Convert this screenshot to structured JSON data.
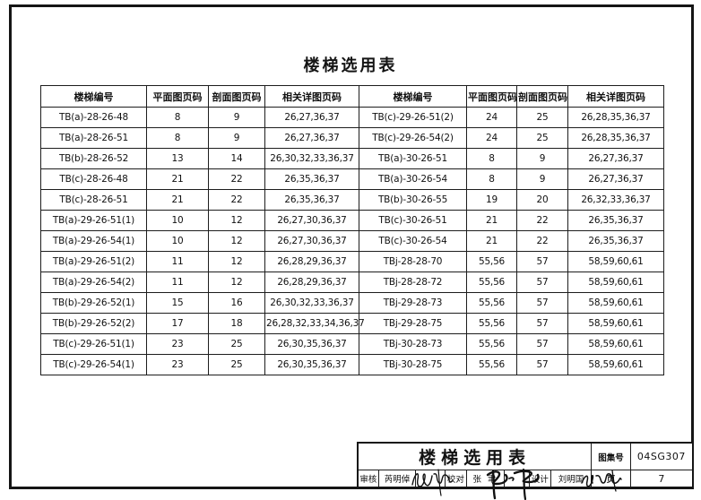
{
  "page": {
    "title": "楼梯选用表"
  },
  "table": {
    "headers": [
      "楼梯编号",
      "平面图页码",
      "剖面图页码",
      "相关详图页码",
      "楼梯编号",
      "平面图页码",
      "剖面图页码",
      "相关详图页码"
    ],
    "rows": [
      [
        "TB(a)-28-26-48",
        "8",
        "9",
        "26,27,36,37",
        "TB(c)-29-26-51(2)",
        "24",
        "25",
        "26,28,35,36,37"
      ],
      [
        "TB(a)-28-26-51",
        "8",
        "9",
        "26,27,36,37",
        "TB(c)-29-26-54(2)",
        "24",
        "25",
        "26,28,35,36,37"
      ],
      [
        "TB(b)-28-26-52",
        "13",
        "14",
        "26,30,32,33,36,37",
        "TB(a)-30-26-51",
        "8",
        "9",
        "26,27,36,37"
      ],
      [
        "TB(c)-28-26-48",
        "21",
        "22",
        "26,35,36,37",
        "TB(a)-30-26-54",
        "8",
        "9",
        "26,27,36,37"
      ],
      [
        "TB(c)-28-26-51",
        "21",
        "22",
        "26,35,36,37",
        "TB(b)-30-26-55",
        "19",
        "20",
        "26,32,33,36,37"
      ],
      [
        "TB(a)-29-26-51(1)",
        "10",
        "12",
        "26,27,30,36,37",
        "TB(c)-30-26-51",
        "21",
        "22",
        "26,35,36,37"
      ],
      [
        "TB(a)-29-26-54(1)",
        "10",
        "12",
        "26,27,30,36,37",
        "TB(c)-30-26-54",
        "21",
        "22",
        "26,35,36,37"
      ],
      [
        "TB(a)-29-26-51(2)",
        "11",
        "12",
        "26,28,29,36,37",
        "TBj-28-28-70",
        "55,56",
        "57",
        "58,59,60,61"
      ],
      [
        "TB(a)-29-26-54(2)",
        "11",
        "12",
        "26,28,29,36,37",
        "TBj-28-28-72",
        "55,56",
        "57",
        "58,59,60,61"
      ],
      [
        "TB(b)-29-26-52(1)",
        "15",
        "16",
        "26,30,32,33,36,37",
        "TBj-29-28-73",
        "55,56",
        "57",
        "58,59,60,61"
      ],
      [
        "TB(b)-29-26-52(2)",
        "17",
        "18",
        "26,28,32,33,34,36,37",
        "TBj-29-28-75",
        "55,56",
        "57",
        "58,59,60,61"
      ],
      [
        "TB(c)-29-26-51(1)",
        "23",
        "25",
        "26,30,35,36,37",
        "TBj-30-28-73",
        "55,56",
        "57",
        "58,59,60,61"
      ],
      [
        "TB(c)-29-26-54(1)",
        "23",
        "25",
        "26,30,35,36,37",
        "TBj-30-28-75",
        "55,56",
        "57",
        "58,59,60,61"
      ]
    ]
  },
  "title_block": {
    "title": "楼梯选用表",
    "atlas_label": "图集号",
    "atlas_number": "04SG307",
    "page_label": "页",
    "page_number": "7",
    "review_label": "审核",
    "reviewer_name": "芮明倬",
    "check_label": "校对",
    "checker_name": "张 聿",
    "design_label": "设计",
    "designer_name": "刘明国"
  }
}
